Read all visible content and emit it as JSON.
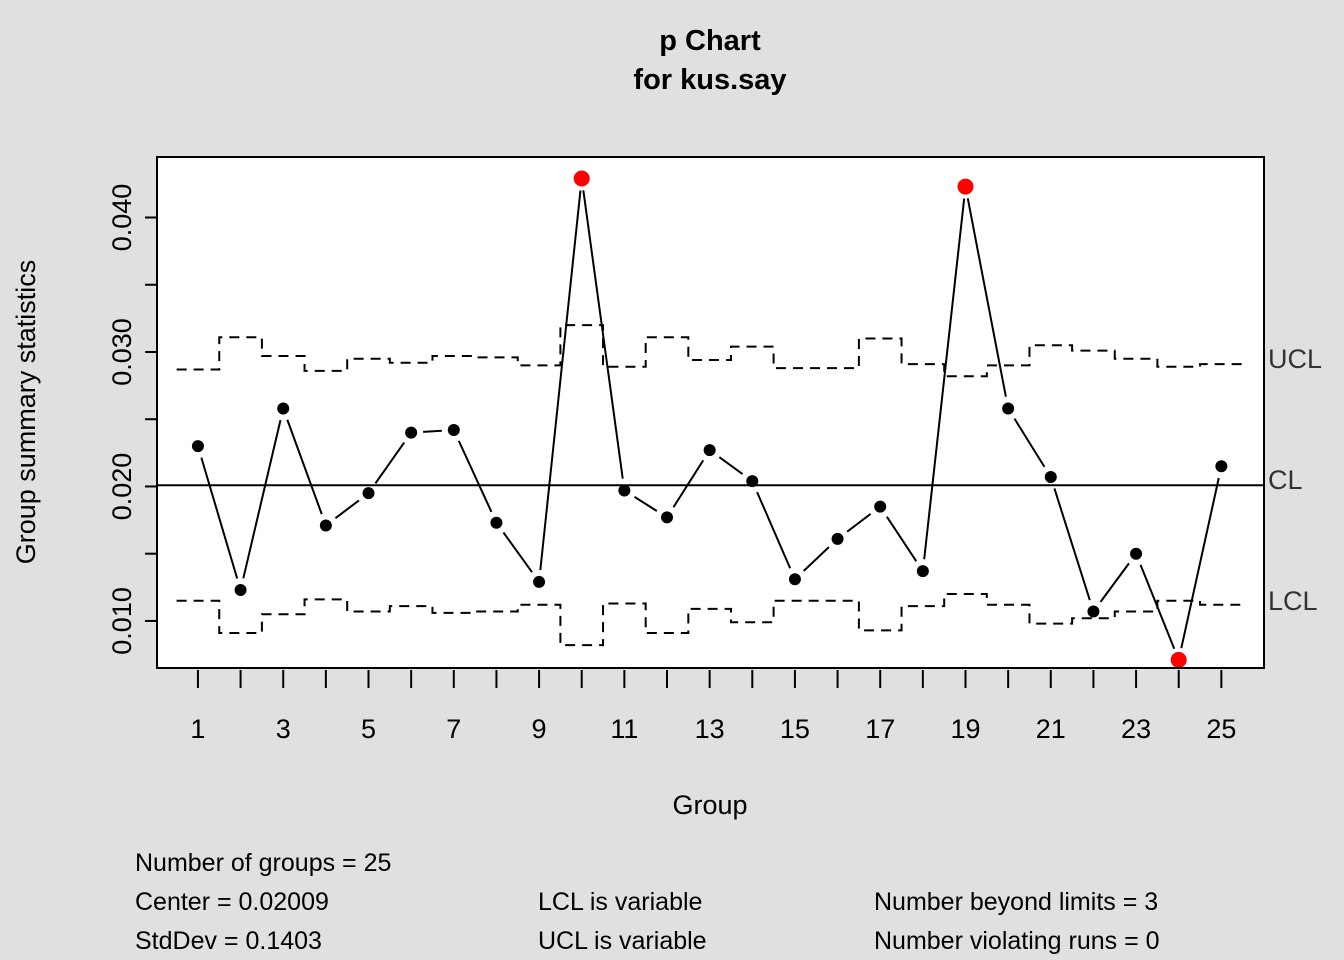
{
  "chart_data": {
    "type": "line",
    "title": "p Chart",
    "subtitle": "for kus.say",
    "xlabel": "Group",
    "ylabel": "Group summary statistics",
    "x_tick_labels": [
      "1",
      "3",
      "5",
      "7",
      "9",
      "11",
      "13",
      "15",
      "17",
      "19",
      "21",
      "23",
      "25"
    ],
    "y_tick_labels": [
      "0.010",
      "0.020",
      "0.030",
      "0.040"
    ],
    "y_ticks": [
      0.01,
      0.015,
      0.02,
      0.025,
      0.03,
      0.035,
      0.04
    ],
    "xlim": [
      0.04,
      26.0
    ],
    "ylim": [
      0.0065,
      0.0445
    ],
    "center": 0.02009,
    "limit_labels": {
      "ucl": "UCL",
      "cl": "CL",
      "lcl": "LCL"
    },
    "x": [
      1,
      2,
      3,
      4,
      5,
      6,
      7,
      8,
      9,
      10,
      11,
      12,
      13,
      14,
      15,
      16,
      17,
      18,
      19,
      20,
      21,
      22,
      23,
      24,
      25
    ],
    "values": [
      0.023,
      0.0123,
      0.0258,
      0.0171,
      0.0195,
      0.024,
      0.0242,
      0.0173,
      0.0129,
      0.0429,
      0.0197,
      0.0177,
      0.0227,
      0.0204,
      0.0131,
      0.0161,
      0.0185,
      0.0137,
      0.0423,
      0.0258,
      0.0207,
      0.0107,
      0.015,
      0.0071,
      0.0215
    ],
    "ucl": [
      0.0287,
      0.0311,
      0.0297,
      0.0286,
      0.0295,
      0.0292,
      0.0297,
      0.0296,
      0.029,
      0.032,
      0.0289,
      0.0311,
      0.0294,
      0.0304,
      0.0288,
      0.0288,
      0.031,
      0.0291,
      0.0282,
      0.029,
      0.0305,
      0.0301,
      0.0295,
      0.0289,
      0.0291
    ],
    "lcl": [
      0.0115,
      0.0091,
      0.0105,
      0.0116,
      0.0107,
      0.0111,
      0.0106,
      0.0107,
      0.0112,
      0.0082,
      0.0113,
      0.0091,
      0.0109,
      0.0099,
      0.0115,
      0.0115,
      0.0093,
      0.0111,
      0.012,
      0.0112,
      0.0098,
      0.0102,
      0.0107,
      0.0115,
      0.0112
    ],
    "beyond_limits_groups": [
      10,
      19,
      24
    ],
    "colors": {
      "point": "#000000",
      "violation": "#ff0000",
      "background": "#e0e0e0",
      "plot_area": "#ffffff"
    },
    "grid": false
  },
  "stats": {
    "groups": "Number of groups = 25",
    "center": "Center = 0.02009",
    "stddev": "StdDev = 0.1403",
    "lcl_variable": "LCL is variable",
    "ucl_variable": "UCL is variable",
    "beyond_limits": "Number beyond limits = 3",
    "violating_runs": "Number violating runs = 0"
  }
}
